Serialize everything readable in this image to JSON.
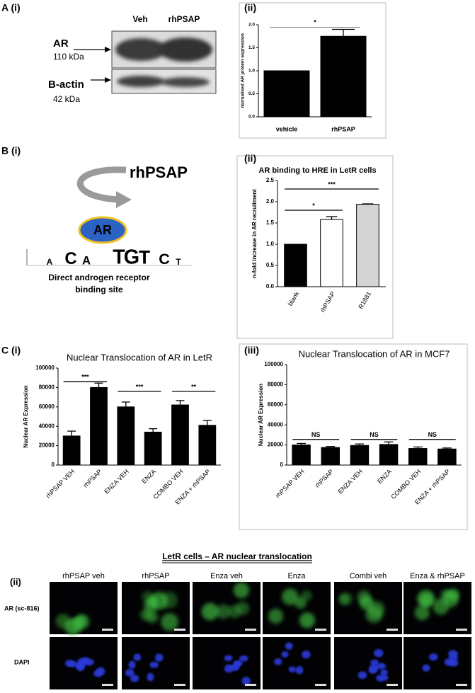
{
  "western_blot": {
    "panel": "A (i)",
    "lanes": [
      "Veh",
      "rhPSAP"
    ],
    "bands": [
      {
        "name": "AR",
        "size": "110 kDa"
      },
      {
        "name": "B-actin",
        "size": "42 kDa"
      }
    ]
  },
  "diagram": {
    "panel": "B (i)",
    "ligand": "rhPSAP",
    "receptor": "AR",
    "motif": [
      "A",
      "C",
      "A",
      "T",
      "G",
      "T",
      "C",
      "T"
    ],
    "caption": [
      "Direct androgen receptor",
      "binding site"
    ]
  },
  "chart_data": [
    {
      "type": "bar",
      "panel": "(ii)",
      "ylabel": "normalised AR protein expression",
      "categories": [
        "vehicle",
        "rhPSAP"
      ],
      "values": [
        1.0,
        1.75
      ],
      "errors": [
        null,
        0.15
      ],
      "color": "#000000",
      "ylim": [
        0,
        2.0
      ],
      "yticks": [
        {
          "value": 0,
          "label": "0.0"
        },
        0.5,
        {
          "value": 1,
          "label": "1.0"
        },
        1.5,
        {
          "value": 2,
          "label": "2.0"
        }
      ],
      "xtick_rotation": 0,
      "annotations": [
        {
          "text": "*",
          "from": 0,
          "to": 1,
          "y": 1.95
        }
      ]
    },
    {
      "type": "bar",
      "panel": "(ii)",
      "title": "AR binding to HRE in LetR cells",
      "ylabel": "n-fold increase in AR recruitment",
      "categories": [
        "blank",
        "rhPSAP",
        "R1881"
      ],
      "values": [
        1.0,
        1.58,
        1.94
      ],
      "errors": [
        null,
        0.07,
        0.01
      ],
      "colors": [
        "#000000",
        "#ffffff",
        "#d4d4d4"
      ],
      "ylim": [
        0,
        2.5
      ],
      "yticks": [
        {
          "value": 0,
          "label": "0.0"
        },
        0.5,
        {
          "value": 1,
          "label": "1.0"
        },
        1.5,
        {
          "value": 2,
          "label": "2.0"
        },
        2.5
      ],
      "xtick_rotation": -60,
      "annotations": [
        {
          "text": "*",
          "from": 0,
          "to": 1,
          "y": 1.8
        },
        {
          "text": "***",
          "from": 0,
          "to": 2,
          "y": 2.3
        }
      ]
    },
    {
      "type": "bar",
      "panel": "C (i)",
      "title": "Nuclear Translocation of AR in LetR",
      "ylabel": "Nuclear AR Expression",
      "categories": [
        "rhPSAP VEH",
        "rhPSAP",
        "ENZA VEH",
        "ENZA",
        "COMBO VEH",
        "ENZA + rhPSAP"
      ],
      "values": [
        30000,
        80000,
        60000,
        34000,
        62000,
        41000
      ],
      "errors": [
        5000,
        4500,
        5000,
        3500,
        4500,
        5000
      ],
      "color": "#000000",
      "ylim": [
        0,
        100000
      ],
      "yticks": [
        0,
        20000,
        40000,
        60000,
        80000,
        100000
      ],
      "xtick_rotation": -45,
      "annotations": [
        {
          "text": "***",
          "from": 0,
          "to": 1,
          "y": 86000
        },
        {
          "text": "***",
          "from": 2,
          "to": 3,
          "y": 76000
        },
        {
          "text": "**",
          "from": 4,
          "to": 5,
          "y": 76000
        }
      ]
    },
    {
      "type": "bar",
      "panel": "(iii)",
      "title": "Nuclear Translocation of AR in MCF7",
      "ylabel": "Nuclear AR Expression",
      "categories": [
        "rhPSAP VEH",
        "rhPSAP",
        "ENZA VEH",
        "ENZA",
        "COMBO VEH",
        "ENZA + rhPSAP"
      ],
      "values": [
        20000,
        17500,
        19500,
        20500,
        16500,
        16000
      ],
      "errors": [
        1500,
        1000,
        1500,
        2500,
        1500,
        1000
      ],
      "color": "#000000",
      "ylim": [
        0,
        100000
      ],
      "yticks": [
        0,
        20000,
        40000,
        60000,
        80000,
        100000
      ],
      "xtick_rotation": -45,
      "annotations": [
        {
          "text": "NS",
          "from": 0,
          "to": 1,
          "y": 25500
        },
        {
          "text": "NS",
          "from": 2,
          "to": 3,
          "y": 25500
        },
        {
          "text": "NS",
          "from": 4,
          "to": 5,
          "y": 25500
        }
      ]
    }
  ],
  "microscopy": {
    "title": "LetR cells – AR nuclear translocation",
    "panel": "(ii)",
    "columns": [
      "rhPSAP veh",
      "rhPSAP",
      "Enza veh",
      "Enza",
      "Combi veh",
      "Enza & rhPSAP"
    ],
    "rows": [
      "AR (sc-816)",
      "DAPI"
    ]
  }
}
